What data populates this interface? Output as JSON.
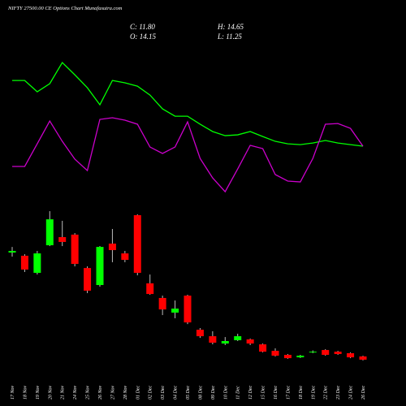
{
  "chart_data": {
    "type": "candlestick",
    "title": "NIFTY 27500.00 CE Options Chart Munafasutra.com",
    "info_labels": [
      "C: 11.80",
      "O: 14.15",
      "H: 14.65",
      "L: 11.25"
    ],
    "categories": [
      "17 Nov",
      "18 Nov",
      "19 Nov",
      "20 Nov",
      "21 Nov",
      "24 Nov",
      "25 Nov",
      "26 Nov",
      "27 Nov",
      "28 Nov",
      "01 Dec",
      "02 Dec",
      "03 Dec",
      "04 Dec",
      "05 Dec",
      "08 Dec",
      "09 Dec",
      "10 Dec",
      "11 Dec",
      "12 Dec",
      "15 Dec",
      "16 Dec",
      "17 Dec",
      "18 Dec",
      "19 Dec",
      "22 Dec",
      "23 Dec",
      "24 Dec",
      "26 Dec"
    ],
    "open": [
      89.4,
      87.1,
      74.7,
      94.7,
      100.6,
      102.4,
      78.2,
      65.9,
      95.9,
      88.8,
      116.5,
      67.1,
      56.5,
      45.9,
      58.2,
      33.5,
      28.8,
      23.5,
      25.9,
      26.5,
      22.9,
      18.2,
      15.3,
      13.5,
      17.1,
      18.8,
      17.6,
      16.5,
      14.15
    ],
    "high": [
      93.5,
      88.2,
      90.6,
      119.4,
      112.4,
      103.5,
      79.4,
      94.1,
      106.5,
      90.6,
      117.1,
      73.5,
      58.2,
      54.7,
      58.8,
      34.7,
      32.4,
      28.2,
      30.6,
      27.1,
      23.5,
      20.0,
      15.9,
      15.3,
      18.5,
      19.4,
      18.2,
      17.1,
      14.65
    ],
    "low": [
      86.5,
      75.3,
      73.5,
      94.1,
      94.1,
      79.4,
      60.0,
      64.7,
      82.4,
      82.4,
      72.9,
      58.8,
      44.1,
      41.8,
      37.6,
      27.6,
      22.9,
      22.4,
      25.3,
      22.4,
      17.1,
      14.1,
      12.4,
      13.0,
      16.5,
      14.7,
      15.3,
      12.9,
      11.25
    ],
    "close": [
      90.6,
      77.1,
      88.8,
      113.5,
      97.1,
      81.2,
      61.8,
      93.5,
      91.2,
      84.1,
      74.7,
      59.4,
      48.2,
      48.8,
      38.8,
      28.8,
      24.1,
      25.3,
      28.8,
      23.5,
      17.6,
      14.7,
      12.9,
      14.7,
      17.6,
      15.3,
      15.9,
      13.5,
      11.8
    ],
    "up_color": "#00ff00",
    "down_color": "#ff0000",
    "series": [
      {
        "color": "#00ff00",
        "values": [
          214.1,
          214.1,
          205.9,
          211.8,
          227.1,
          218.2,
          208.8,
          196.5,
          214.1,
          212.4,
          210.0,
          203.5,
          193.5,
          188.2,
          188.2,
          182.4,
          177.1,
          174.1,
          174.7,
          177.1,
          173.5,
          170.0,
          168.2,
          167.6,
          168.8,
          170.6,
          168.8,
          167.6,
          166.5
        ]
      },
      {
        "color": "#cc00cc",
        "values": [
          151.8,
          151.8,
          168.2,
          184.7,
          170.0,
          157.1,
          148.8,
          185.9,
          187.1,
          185.3,
          182.4,
          165.9,
          161.2,
          165.9,
          184.1,
          157.6,
          143.5,
          133.5,
          150.0,
          167.1,
          164.7,
          145.9,
          141.2,
          140.6,
          157.6,
          182.4,
          182.9,
          179.4,
          166.5
        ]
      }
    ],
    "ylim": [
      0,
      272.4
    ]
  }
}
